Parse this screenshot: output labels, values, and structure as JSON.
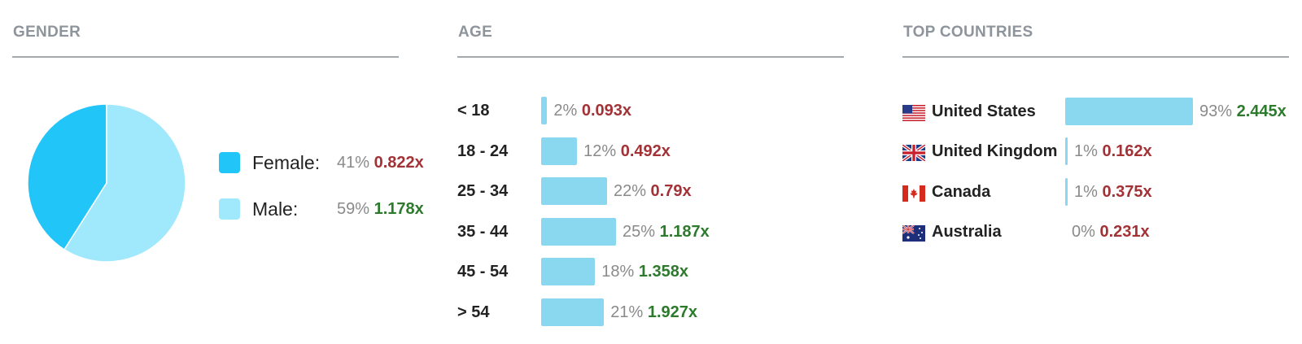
{
  "colors": {
    "female": "#22c5f7",
    "male": "#a0e8fc",
    "bar": "#8ad8f0",
    "index_low": "#a33236",
    "index_high": "#2d7a2d",
    "title": "#8e949b",
    "rule": "#a4a9ae"
  },
  "gender": {
    "title": "GENDER"
  },
  "age": {
    "title": "AGE"
  },
  "countries": {
    "title": "TOP COUNTRIES"
  },
  "chart_data": [
    {
      "type": "pie",
      "title": "GENDER",
      "slices": [
        {
          "label": "Female:",
          "percent": 41,
          "percent_text": "41%",
          "index_text": "0.822x",
          "index_tone": "low",
          "color": "#22c5f7"
        },
        {
          "label": "Male:",
          "percent": 59,
          "percent_text": "59%",
          "index_text": "1.178x",
          "index_tone": "high",
          "color": "#a0e8fc"
        }
      ]
    },
    {
      "type": "bar",
      "orientation": "horizontal",
      "title": "AGE",
      "categories": [
        "< 18",
        "18 - 24",
        "25 - 34",
        "35 - 44",
        "45 - 54",
        "> 54"
      ],
      "values": [
        2,
        12,
        22,
        25,
        18,
        21
      ],
      "value_labels": [
        "2%",
        "12%",
        "22%",
        "25%",
        "18%",
        "21%"
      ],
      "index_labels": [
        "0.093x",
        "0.492x",
        "0.79x",
        "1.187x",
        "1.358x",
        "1.927x"
      ],
      "index_tones": [
        "low",
        "low",
        "low",
        "high",
        "high",
        "high"
      ],
      "xlim": [
        0,
        100
      ]
    },
    {
      "type": "bar",
      "orientation": "horizontal",
      "title": "TOP COUNTRIES",
      "categories": [
        "United States",
        "United Kingdom",
        "Canada",
        "Australia"
      ],
      "flags": [
        "us-flag-icon",
        "uk-flag-icon",
        "canada-flag-icon",
        "australia-flag-icon"
      ],
      "values": [
        93,
        1,
        1,
        0
      ],
      "value_labels": [
        "93%",
        "1%",
        "1%",
        "0%"
      ],
      "index_labels": [
        "2.445x",
        "0.162x",
        "0.375x",
        "0.231x"
      ],
      "index_tones": [
        "high",
        "low",
        "low",
        "low"
      ],
      "xlim": [
        0,
        100
      ]
    }
  ]
}
